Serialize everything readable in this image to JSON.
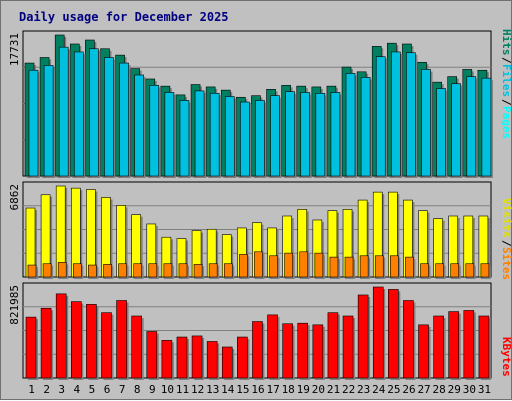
{
  "chart_data": {
    "type": "bar",
    "title": "Daily usage for December 2025",
    "categories": [
      "1",
      "2",
      "3",
      "4",
      "5",
      "6",
      "7",
      "8",
      "9",
      "10",
      "11",
      "12",
      "13",
      "14",
      "15",
      "16",
      "17",
      "18",
      "19",
      "20",
      "21",
      "22",
      "23",
      "24",
      "25",
      "26",
      "27",
      "28",
      "29",
      "30",
      "31"
    ],
    "weekend_days": [
      "6",
      "7",
      "13",
      "14",
      "20",
      "21",
      "27",
      "28"
    ],
    "colors": {
      "weekday": "#000000",
      "weekend": "#007050",
      "hits": "#008060",
      "files": "#00c0e0",
      "pages": "#00ffff",
      "visits": "#ffff00",
      "sites": "#ff8000",
      "kbytes": "#ff0000"
    },
    "panels": [
      {
        "name": "hits-files-pages",
        "ylim": [
          0,
          17731
        ],
        "ymax_label": "17731",
        "legend": [
          "Pages",
          "Files",
          "Hits"
        ],
        "series": [
          {
            "name": "Hits",
            "color": "#008060",
            "values": [
              14200,
              14900,
              17731,
              16600,
              17100,
              16000,
              15200,
              13500,
              12200,
              11300,
              10200,
              11500,
              11200,
              10800,
              9900,
              10100,
              10900,
              11400,
              11300,
              11200,
              11300,
              13700,
              13100,
              16300,
              16700,
              16600,
              14300,
              11800,
              12500,
              13400,
              13300
            ]
          },
          {
            "name": "Files",
            "color": "#00c0e0",
            "values": [
              13300,
              13900,
              16200,
              15600,
              16000,
              14900,
              14200,
              12700,
              11400,
              10500,
              9500,
              10700,
              10400,
              10000,
              9300,
              9500,
              10100,
              10600,
              10500,
              10400,
              10500,
              12900,
              12400,
              15000,
              15600,
              15500,
              13400,
              11000,
              11600,
              12500,
              12300
            ]
          },
          {
            "name": "Pages",
            "color": "#00ffff",
            "values": [
              13300,
              13900,
              16200,
              15600,
              16000,
              14900,
              14200,
              12700,
              11400,
              10500,
              9500,
              10700,
              10400,
              10000,
              9300,
              9500,
              10100,
              10600,
              10500,
              10400,
              10500,
              12900,
              12400,
              15000,
              15600,
              15500,
              13400,
              11000,
              11600,
              12500,
              12300
            ]
          }
        ]
      },
      {
        "name": "visits-sites",
        "ylim": [
          0,
          6862
        ],
        "ymax_label": "6862",
        "legend": [
          "Sites",
          "Visits"
        ],
        "series": [
          {
            "name": "Visits",
            "color": "#ffff00",
            "values": [
              5200,
              6200,
              6862,
              6700,
              6600,
              6000,
              5400,
              4700,
              4000,
              3000,
              2900,
              3500,
              3600,
              3200,
              3700,
              4100,
              3700,
              4600,
              5100,
              4300,
              5000,
              5100,
              5800,
              6400,
              6400,
              5800,
              5000,
              4400,
              4600,
              4600,
              4600
            ]
          },
          {
            "name": "Sites",
            "color": "#ff8000",
            "values": [
              900,
              1000,
              1100,
              1000,
              900,
              950,
              1000,
              1000,
              1000,
              1000,
              1000,
              950,
              1000,
              1000,
              1700,
              1900,
              1600,
              1800,
              1900,
              1800,
              1500,
              1500,
              1600,
              1600,
              1600,
              1500,
              1000,
              1000,
              1000,
              1000,
              1000
            ]
          }
        ]
      },
      {
        "name": "kbytes",
        "ylim": [
          0,
          821985
        ],
        "ymax_label": "821985",
        "legend": [
          "KBytes"
        ],
        "series": [
          {
            "name": "KBytes",
            "color": "#ff0000",
            "values": [
              550000,
              630000,
              760000,
              690000,
              665000,
              590000,
              700000,
              560000,
              420000,
              340000,
              370000,
              380000,
              330000,
              280000,
              370000,
              510000,
              570000,
              490000,
              495000,
              480000,
              590000,
              560000,
              750000,
              821985,
              800000,
              700000,
              480000,
              560000,
              600000,
              610000,
              560000
            ]
          }
        ]
      }
    ],
    "grid": true
  }
}
